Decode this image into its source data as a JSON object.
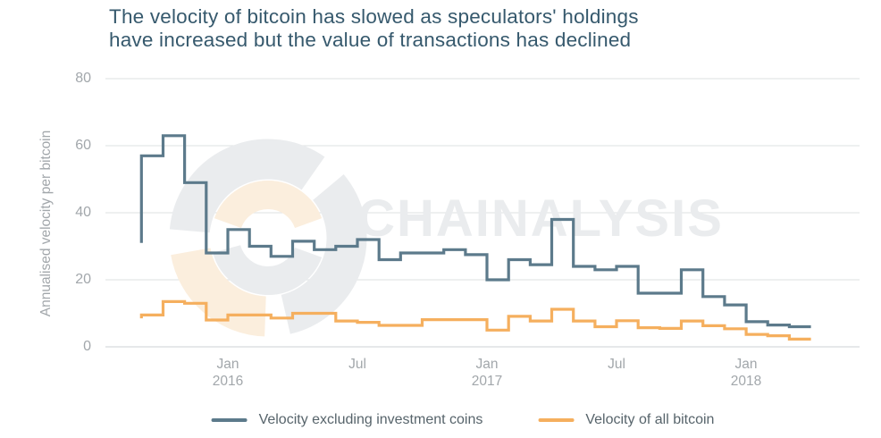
{
  "title": {
    "line1": "The velocity of bitcoin has slowed as speculators' holdings",
    "line2": "have increased but the value of transactions has declined"
  },
  "watermark": {
    "text": "CHAINALYSIS",
    "logo": "chainalysis-swirl-mark"
  },
  "colors": {
    "series_dark": "#5c7a8b",
    "series_orange": "#f5af5e",
    "grid": "#e3e6e8",
    "zero_line": "#d8dbde",
    "axis_text": "#a2a7ab",
    "title_text": "#36596d",
    "legend_text": "#57646b",
    "watermark_gray": "#eaecee",
    "watermark_orange": "#fbeedd",
    "background": "#ffffff"
  },
  "chart_data": {
    "type": "line",
    "style": "step",
    "title": "The velocity of bitcoin has slowed as speculators' holdings have increased but the value of transactions has declined",
    "xlabel": "",
    "ylabel": "Annualised velocity per bitcoin",
    "ylim": [
      0,
      80
    ],
    "yticks": [
      0,
      20,
      40,
      60,
      80
    ],
    "grid": "horizontal",
    "legend_position": "bottom-center",
    "months": [
      "Sep 2015",
      "Oct 2015",
      "Nov 2015",
      "Dec 2015",
      "Jan 2016",
      "Feb 2016",
      "Mar 2016",
      "Apr 2016",
      "May 2016",
      "Jun 2016",
      "Jul 2016",
      "Aug 2016",
      "Sep 2016",
      "Oct 2016",
      "Nov 2016",
      "Dec 2016",
      "Jan 2017",
      "Feb 2017",
      "Mar 2017",
      "Apr 2017",
      "May 2017",
      "Jun 2017",
      "Jul 2017",
      "Aug 2017",
      "Sep 2017",
      "Oct 2017",
      "Nov 2017",
      "Dec 2017",
      "Jan 2018",
      "Feb 2018",
      "Mar 2018"
    ],
    "xticks": [
      {
        "label": "Jan",
        "year": "2016",
        "month_index": 4
      },
      {
        "label": "Jul",
        "year": "",
        "month_index": 10
      },
      {
        "label": "Jan",
        "year": "2017",
        "month_index": 16
      },
      {
        "label": "Jul",
        "year": "",
        "month_index": 22
      },
      {
        "label": "Jan",
        "year": "2018",
        "month_index": 28
      }
    ],
    "series": [
      {
        "name": "Velocity excluding investment coins",
        "color_key": "series_dark",
        "lead_in_value": 31,
        "values": [
          57,
          63,
          49,
          28,
          35,
          30,
          27,
          31.5,
          29,
          30,
          32,
          26,
          28,
          28,
          29,
          27.5,
          20,
          26,
          24.5,
          38,
          24,
          23,
          24,
          16,
          16,
          23,
          15,
          12.5,
          7.5,
          6.5,
          6
        ]
      },
      {
        "name": "Velocity of all bitcoin",
        "color_key": "series_orange",
        "lead_in_value": 8.5,
        "values": [
          9.5,
          13.5,
          13,
          8,
          9.5,
          9.5,
          8.6,
          10,
          10,
          7.7,
          7.3,
          6.4,
          6.4,
          8.1,
          8.1,
          8.1,
          5,
          9.1,
          7.7,
          11.2,
          7.7,
          6,
          7.8,
          5.7,
          5.5,
          7.7,
          6.3,
          5.4,
          3.7,
          3.3,
          2.3
        ]
      }
    ]
  }
}
